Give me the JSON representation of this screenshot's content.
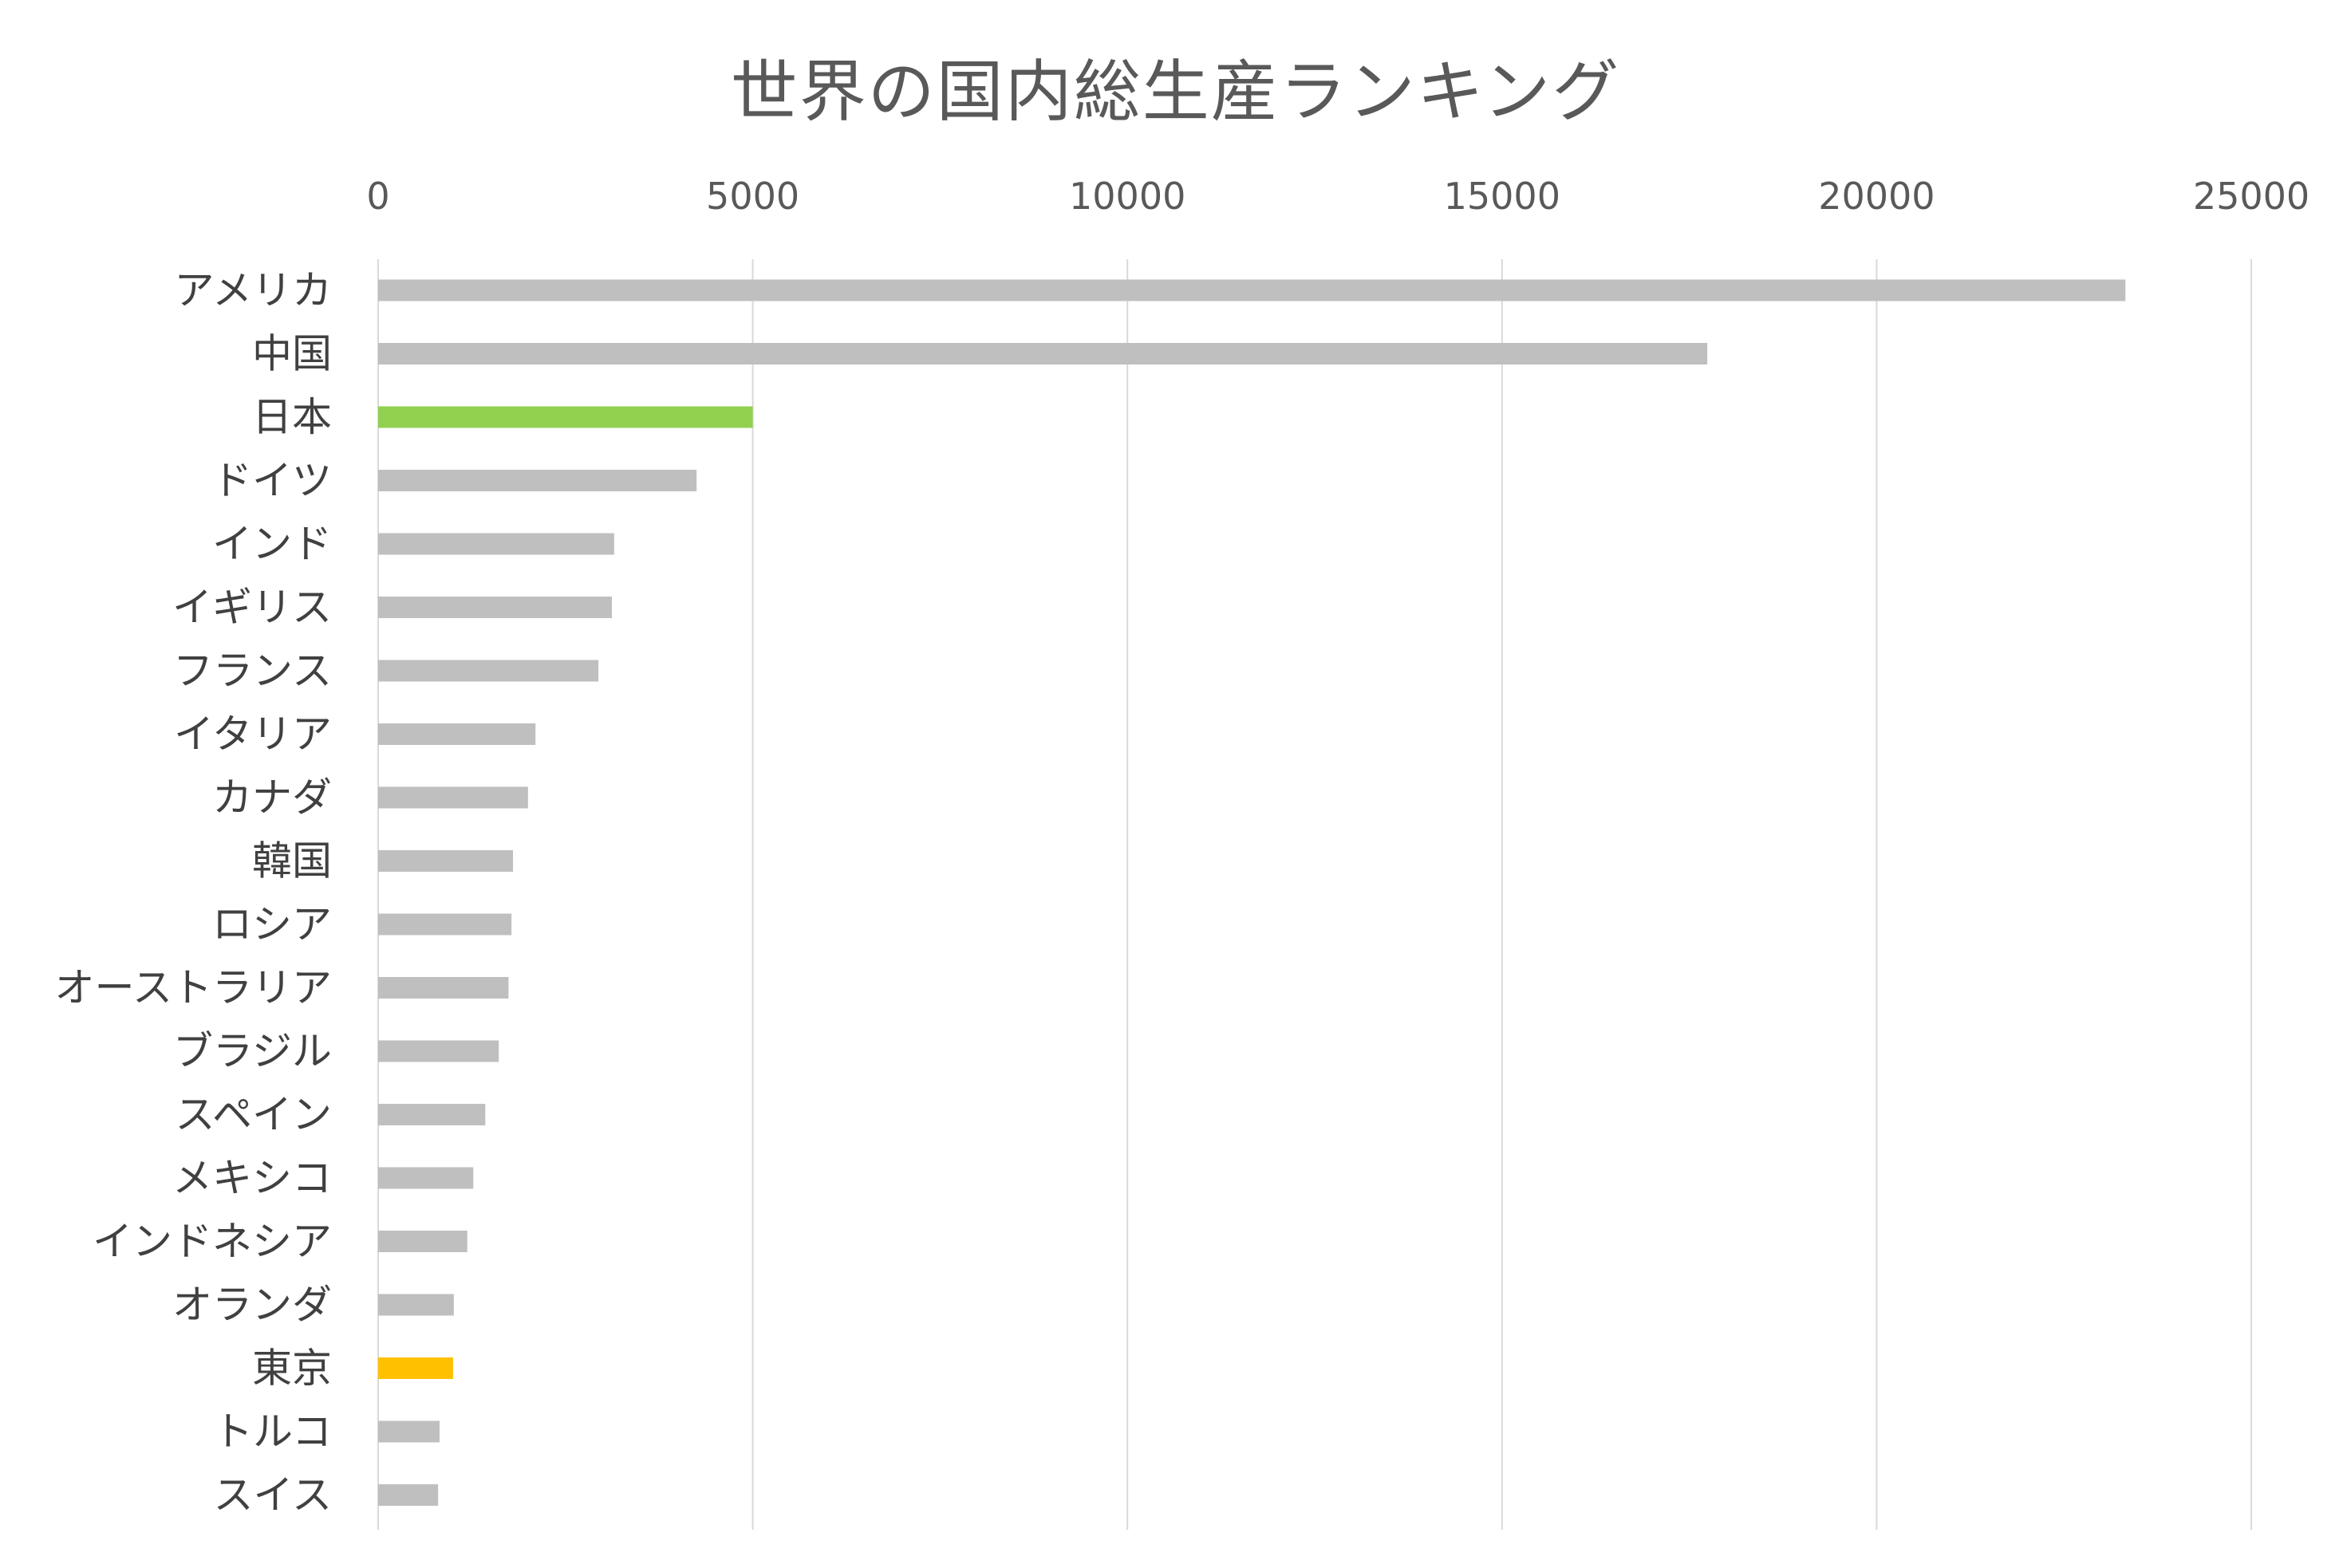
{
  "chart_data": {
    "type": "bar",
    "orientation": "horizontal",
    "title": "世界の国内総生産ランキング",
    "xlim": [
      0,
      25000
    ],
    "ticks": [
      "0",
      "5000",
      "10000",
      "15000",
      "20000",
      "25000"
    ],
    "tick_values": [
      0,
      5000,
      10000,
      15000,
      20000,
      25000
    ],
    "categories": [
      "アメリカ",
      "中国",
      "日本",
      "ドイツ",
      "インド",
      "イギリス",
      "フランス",
      "イタリア",
      "カナダ",
      "韓国",
      "ロシア",
      "オーストラリア",
      "ブラジル",
      "スペイン",
      "メキシコ",
      "インドネシア",
      "オランダ",
      "東京",
      "トルコ",
      "スイス"
    ],
    "values": [
      23320,
      17740,
      5000,
      4250,
      3150,
      3120,
      2940,
      2100,
      2000,
      1800,
      1780,
      1740,
      1610,
      1430,
      1270,
      1190,
      1010,
      1000,
      820,
      800
    ],
    "colors": [
      "#bfbfbf",
      "#bfbfbf",
      "#92d050",
      "#bfbfbf",
      "#bfbfbf",
      "#bfbfbf",
      "#bfbfbf",
      "#bfbfbf",
      "#bfbfbf",
      "#bfbfbf",
      "#bfbfbf",
      "#bfbfbf",
      "#bfbfbf",
      "#bfbfbf",
      "#bfbfbf",
      "#bfbfbf",
      "#bfbfbf",
      "#ffc000",
      "#bfbfbf",
      "#bfbfbf"
    ],
    "gridlines": true,
    "legend": false
  }
}
